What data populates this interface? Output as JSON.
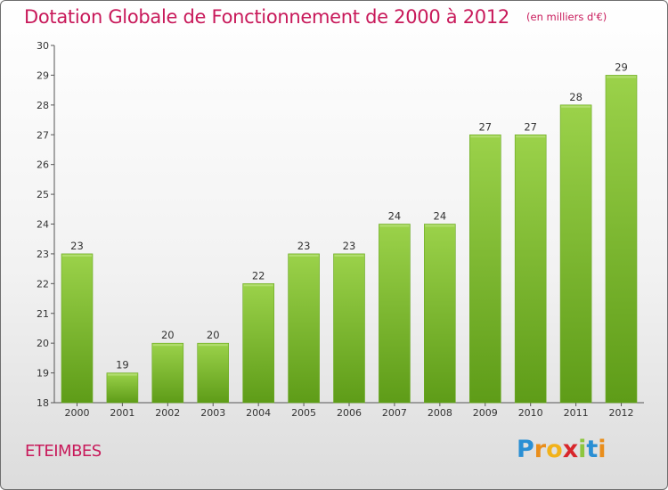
{
  "chart_data": {
    "type": "bar",
    "title": "Dotation Globale de Fonctionnement de 2000 à 2012",
    "subtitle": "(en milliers d'€)",
    "categories": [
      "2000",
      "2001",
      "2002",
      "2003",
      "2004",
      "2005",
      "2006",
      "2007",
      "2008",
      "2009",
      "2010",
      "2011",
      "2012"
    ],
    "values": [
      23,
      19,
      20,
      20,
      22,
      23,
      23,
      24,
      24,
      27,
      27,
      28,
      29
    ],
    "ylim": [
      18,
      30
    ],
    "yticks": [
      18,
      19,
      20,
      21,
      22,
      23,
      24,
      25,
      26,
      27,
      28,
      29,
      30
    ],
    "xlabel": "",
    "ylabel": "",
    "grid": false,
    "bar_color": "#7cbc2a",
    "bar_color_dark": "#5c9a16"
  },
  "location": {
    "name": "ETEIMBES"
  },
  "brand": {
    "parts": [
      "P",
      "r",
      "o",
      "x",
      "i",
      "t",
      "i"
    ]
  },
  "colors": {
    "accent": "#c8195a"
  }
}
